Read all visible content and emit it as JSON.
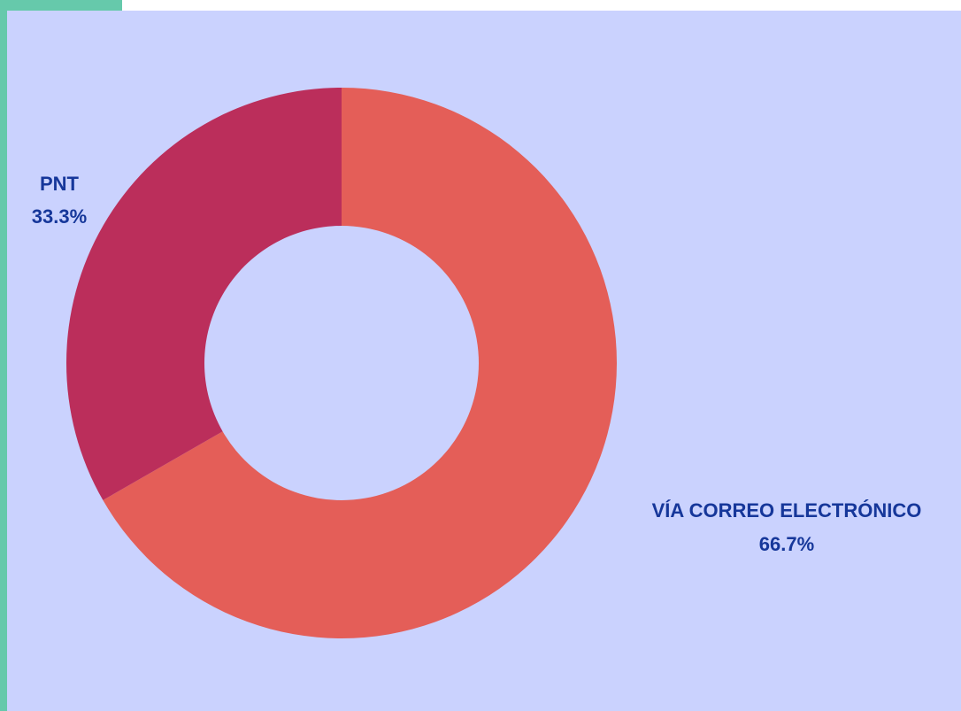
{
  "colors": {
    "panel_background": "#cad2fe",
    "accent": "#66c9ab",
    "label_text": "#16379a"
  },
  "chart_data": {
    "type": "pie",
    "donut": true,
    "start_angle_deg": 0,
    "direction": "clockwise",
    "slices": [
      {
        "label": "VÍA CORREO ELECTRÓNICO",
        "value": 66.7,
        "percent_label": "66.7%",
        "color": "#e45e58",
        "label_position": "lower-right"
      },
      {
        "label": "PNT",
        "value": 33.3,
        "percent_label": "33.3%",
        "color": "#bb2e5b",
        "label_position": "upper-left"
      }
    ],
    "legend": false
  }
}
